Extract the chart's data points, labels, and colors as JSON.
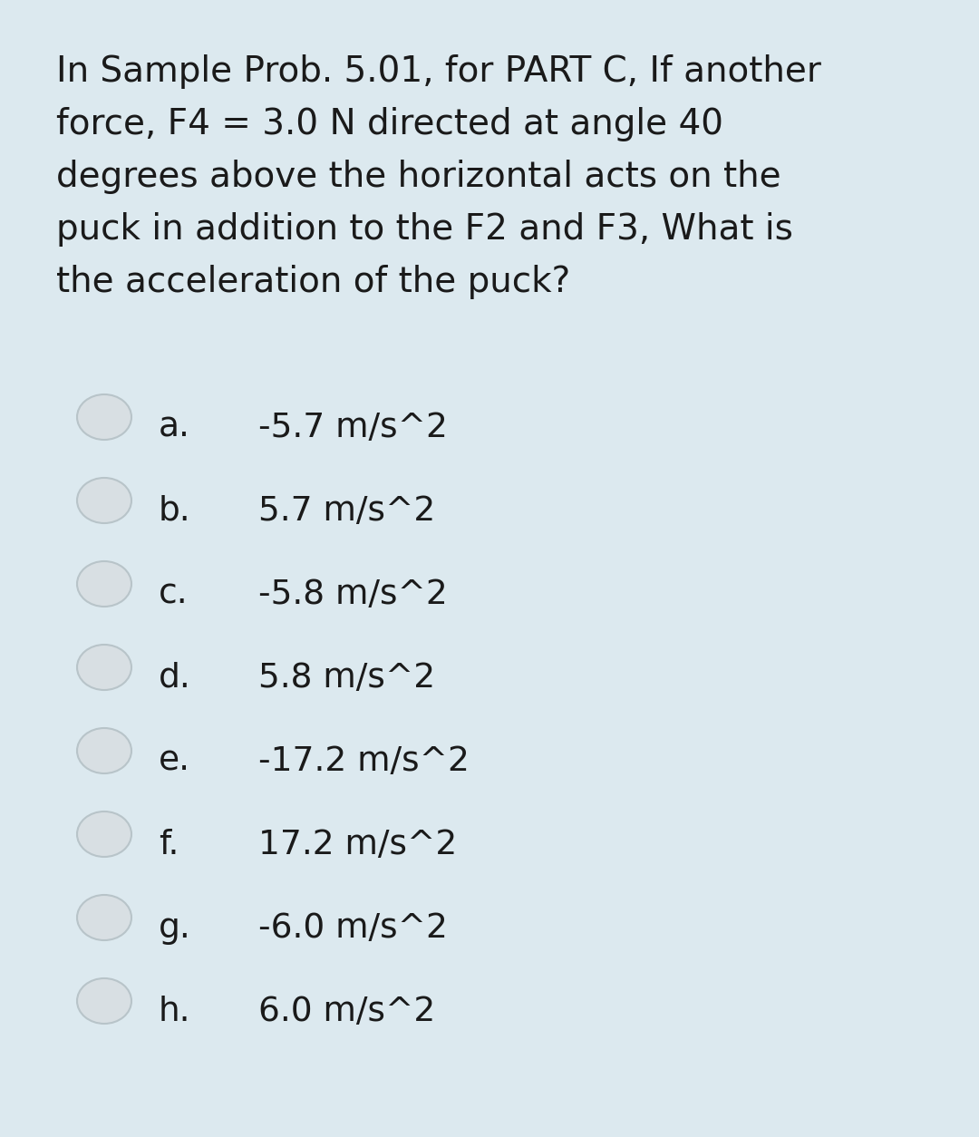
{
  "background_color": "#dce9ef",
  "text_color": "#1a1a1a",
  "question_lines": [
    "In Sample Prob. 5.01, for PART C, If another",
    "force, F4 = 3.0 N directed at angle 40",
    "degrees above the horizontal acts on the",
    "puck in addition to the F2 and F3, What is",
    "the acceleration of the puck?"
  ],
  "options": [
    {
      "label": "a.",
      "text": "-5.7 m/s^2"
    },
    {
      "label": "b.",
      "text": "5.7 m/s^2"
    },
    {
      "label": "c.",
      "text": "-5.8 m/s^2"
    },
    {
      "label": "d.",
      "text": "5.8 m/s^2"
    },
    {
      "label": "e.",
      "text": "-17.2 m/s^2"
    },
    {
      "label": "f.",
      "text": "17.2 m/s^2"
    },
    {
      "label": "g.",
      "text": "-6.0 m/s^2"
    },
    {
      "label": "h.",
      "text": "6.0 m/s^2"
    }
  ],
  "circle_fill": "#d8dfe3",
  "circle_edge": "#b8c4c9",
  "question_fontsize": 28,
  "option_fontsize": 27,
  "fig_width": 10.8,
  "fig_height": 12.54
}
